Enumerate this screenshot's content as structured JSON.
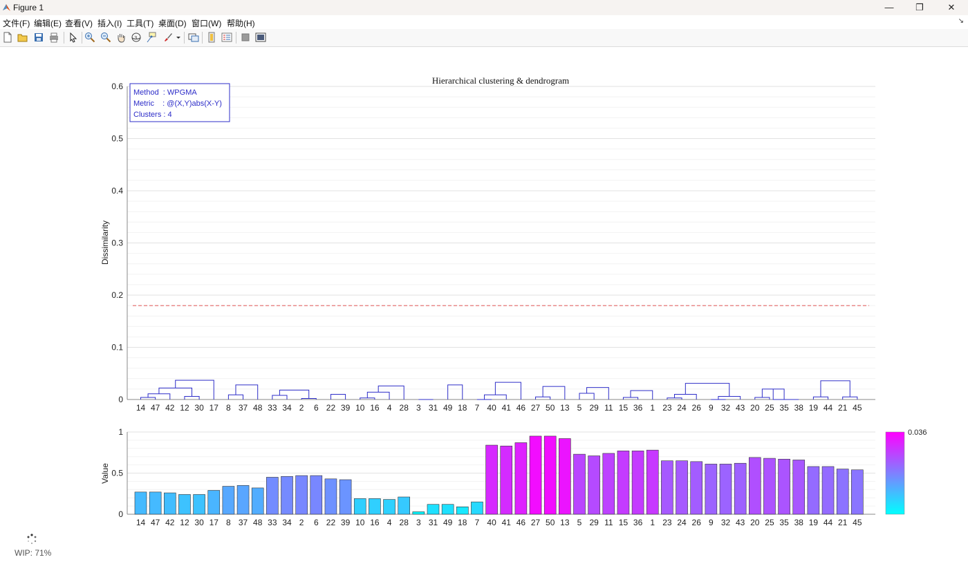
{
  "window": {
    "title": "Figure 1",
    "minimize_glyph": "—",
    "restore_glyph": "❐",
    "close_glyph": "✕"
  },
  "menu": [
    "文件(F)",
    "编辑(E)",
    "查看(V)",
    "插入(I)",
    "工具(T)",
    "桌面(D)",
    "窗口(W)",
    "帮助(H)"
  ],
  "toolbar": [
    "new-figure-icon",
    "open-icon",
    "save-icon",
    "print-icon",
    "pointer-icon",
    "zoom-in-icon",
    "zoom-out-icon",
    "pan-icon",
    "rotate-3d-icon",
    "data-cursor-icon",
    "brush-icon",
    "link-plot-icon",
    "colorbar-icon",
    "legend-icon",
    "hide-plot-tools-icon",
    "show-plot-tools-icon"
  ],
  "status": {
    "text": "WIP: 71%",
    "progress": 0.71
  },
  "chart_data": [
    {
      "type": "dendrogram",
      "title": "Hierarchical clustering & dendrogram",
      "ylabel": "Dissimilarity",
      "ylim": [
        0,
        0.6
      ],
      "yticks": [
        "0",
        "0.1",
        "0.2",
        "0.3",
        "0.4",
        "0.5",
        "0.6"
      ],
      "grid": true,
      "threshold": 0.18,
      "threshold_color": "#e05050",
      "link_color": "#2c2cc8",
      "annotation": [
        "Method  : WPGMA",
        "Metric    : @(X,Y)abs(X-Y)",
        "Clusters : 4"
      ],
      "leaf_order": [
        "14",
        "47",
        "42",
        "12",
        "30",
        "17",
        "8",
        "37",
        "48",
        "33",
        "34",
        "2",
        "6",
        "22",
        "39",
        "10",
        "16",
        "4",
        "28",
        "3",
        "31",
        "49",
        "18",
        "7",
        "40",
        "41",
        "46",
        "27",
        "50",
        "13",
        "5",
        "29",
        "11",
        "15",
        "36",
        "1",
        "23",
        "24",
        "26",
        "9",
        "32",
        "43",
        "20",
        "25",
        "35",
        "38",
        "19",
        "44",
        "21",
        "45"
      ],
      "links": [
        {
          "a": "L0",
          "b": "L1",
          "h": 0.004
        },
        {
          "a": "N0",
          "b": "L2",
          "h": 0.011
        },
        {
          "a": "L3",
          "b": "L4",
          "h": 0.006
        },
        {
          "a": "N1",
          "b": "N2",
          "h": 0.022
        },
        {
          "a": "N3",
          "b": "L5",
          "h": 0.037
        },
        {
          "a": "L6",
          "b": "L7",
          "h": 0.009
        },
        {
          "a": "N5",
          "b": "L8",
          "h": 0.028
        },
        {
          "a": "L9",
          "b": "L10",
          "h": 0.008
        },
        {
          "a": "L11",
          "b": "L12",
          "h": 0.002
        },
        {
          "a": "N7",
          "b": "N8",
          "h": 0.018
        },
        {
          "a": "L13",
          "b": "L14",
          "h": 0.01
        },
        {
          "a": "L15",
          "b": "L16",
          "h": 0.003
        },
        {
          "a": "N11",
          "b": "L17",
          "h": 0.014
        },
        {
          "a": "N12",
          "b": "L18",
          "h": 0.026
        },
        {
          "a": "L19",
          "b": "L20",
          "h": 0.0
        },
        {
          "a": "L21",
          "b": "L22",
          "h": 0.028
        },
        {
          "a": "L23",
          "b": "L24",
          "h": 0.0
        },
        {
          "a": "N16",
          "b": "L25",
          "h": 0.009
        },
        {
          "a": "N17",
          "b": "L26",
          "h": 0.033
        },
        {
          "a": "L27",
          "b": "L28",
          "h": 0.005
        },
        {
          "a": "N19",
          "b": "L29",
          "h": 0.025
        },
        {
          "a": "L30",
          "b": "L31",
          "h": 0.012
        },
        {
          "a": "N21",
          "b": "L32",
          "h": 0.023
        },
        {
          "a": "L33",
          "b": "L34",
          "h": 0.004
        },
        {
          "a": "N23",
          "b": "L35",
          "h": 0.017
        },
        {
          "a": "L36",
          "b": "L37",
          "h": 0.003
        },
        {
          "a": "N25",
          "b": "L38",
          "h": 0.01
        },
        {
          "a": "L39",
          "b": "L40",
          "h": 0.0
        },
        {
          "a": "N27",
          "b": "L41",
          "h": 0.006
        },
        {
          "a": "N26",
          "b": "N28",
          "h": 0.031
        },
        {
          "a": "L42",
          "b": "L43",
          "h": 0.004
        },
        {
          "a": "N30",
          "b": "L44",
          "h": 0.02
        },
        {
          "a": "N31",
          "b": "L45",
          "h": 0.0
        },
        {
          "a": "L46",
          "b": "L47",
          "h": 0.005
        },
        {
          "a": "L48",
          "b": "L49",
          "h": 0.005
        },
        {
          "a": "N33",
          "b": "N34",
          "h": 0.036
        }
      ]
    },
    {
      "type": "bar",
      "ylabel": "Value",
      "ylim": [
        0,
        1
      ],
      "yticks": [
        "0",
        "0.5",
        "1"
      ],
      "grid": true,
      "categories": [
        "14",
        "47",
        "42",
        "12",
        "30",
        "17",
        "8",
        "37",
        "48",
        "33",
        "34",
        "2",
        "6",
        "22",
        "39",
        "10",
        "16",
        "4",
        "28",
        "3",
        "31",
        "49",
        "18",
        "7",
        "40",
        "41",
        "46",
        "27",
        "50",
        "13",
        "5",
        "29",
        "11",
        "15",
        "36",
        "1",
        "23",
        "24",
        "26",
        "9",
        "32",
        "43",
        "20",
        "25",
        "35",
        "38",
        "19",
        "44",
        "21",
        "45"
      ],
      "values": [
        0.27,
        0.27,
        0.26,
        0.24,
        0.24,
        0.29,
        0.34,
        0.35,
        0.32,
        0.45,
        0.46,
        0.47,
        0.47,
        0.43,
        0.42,
        0.19,
        0.19,
        0.18,
        0.21,
        0.03,
        0.12,
        0.12,
        0.09,
        0.15,
        0.84,
        0.83,
        0.87,
        0.95,
        0.95,
        0.92,
        0.73,
        0.71,
        0.74,
        0.77,
        0.77,
        0.78,
        0.65,
        0.65,
        0.64,
        0.61,
        0.61,
        0.62,
        0.69,
        0.68,
        0.67,
        0.66,
        0.58,
        0.58,
        0.55,
        0.54
      ],
      "colormap": [
        "#00ffff",
        "#ff00ff"
      ],
      "colorbar_max_label": "0.036"
    }
  ]
}
